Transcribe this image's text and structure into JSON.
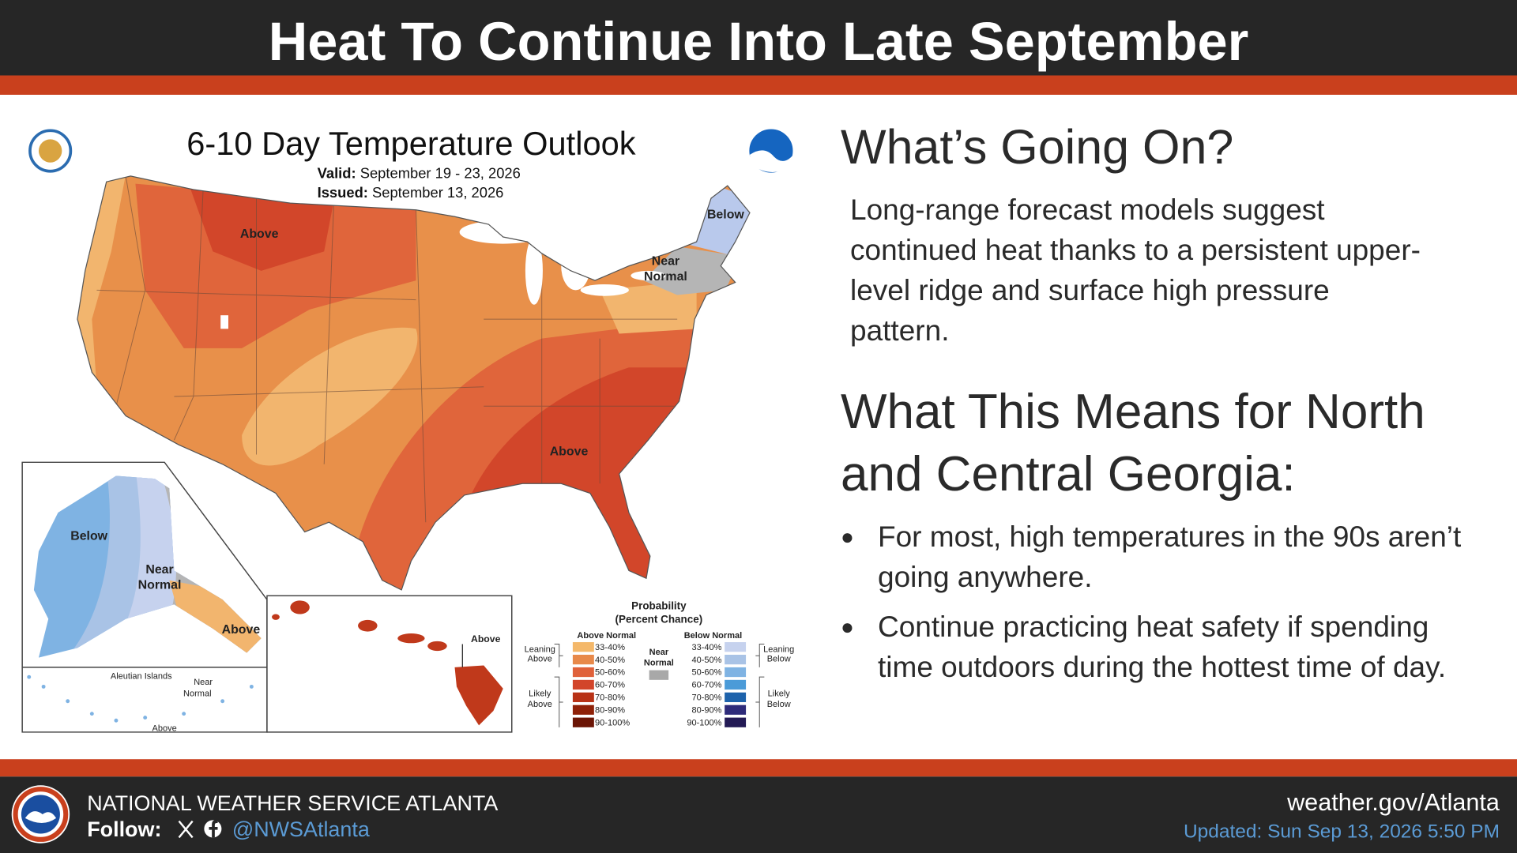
{
  "header": {
    "title": "Heat To Continue Into Late September"
  },
  "map": {
    "title": "6-10 Day Temperature Outlook",
    "valid_label": "Valid:",
    "valid": "September 19 - 23, 2026",
    "issued_label": "Issued:",
    "issued": "September 13, 2026",
    "labels": {
      "conus_north": "Above",
      "northeast_below": "Below",
      "northeast_near": [
        "Near",
        "Normal"
      ],
      "conus_southeast": "Above",
      "alaska_below": "Below",
      "alaska_near": [
        "Near",
        "Normal"
      ],
      "alaska_above": "Above",
      "aleutian_title": "Aleutian Islands",
      "aleutian_near": [
        "Near",
        "Normal"
      ],
      "aleutian_above": "Above",
      "hawaii_above": "Above"
    },
    "legend": {
      "title": [
        "Probability",
        "(Percent Chance)"
      ],
      "above_normal": "Above Normal",
      "below_normal": "Below Normal",
      "near_normal": [
        "Near",
        "Normal"
      ],
      "ranges": [
        "33-40%",
        "40-50%",
        "50-60%",
        "60-70%",
        "70-80%",
        "80-90%",
        "90-100%"
      ],
      "leaning_above": [
        "Leaning",
        "Above"
      ],
      "likely_above": [
        "Likely",
        "Above"
      ],
      "leaning_below": [
        "Leaning",
        "Below"
      ],
      "likely_below": [
        "Likely",
        "Below"
      ]
    }
  },
  "panel": {
    "heading": "What’s Going On?",
    "body": "Long-range forecast models suggest continued heat thanks to a persistent upper-level ridge and surface high pressure pattern.",
    "heading2": "What This Means for North and Central Georgia:",
    "bullets": [
      "For most, high temperatures in the 90s aren’t going anywhere.",
      "Continue practicing heat safety if spending time outdoors during the hottest time of day."
    ]
  },
  "footer": {
    "org": "NATIONAL WEATHER SERVICE ATLANTA",
    "follow": "Follow:",
    "handle": "@NWSAtlanta",
    "site": "weather.gov/Atlanta",
    "updated": "Updated: Sun Sep 13, 2026 5:50 PM"
  }
}
